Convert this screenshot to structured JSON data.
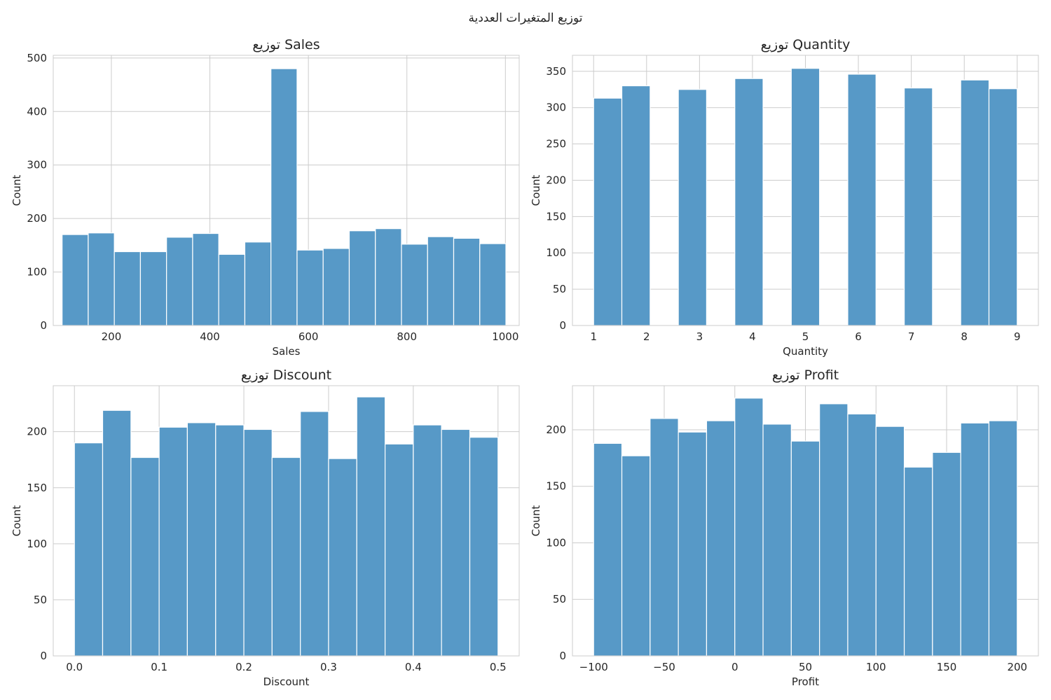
{
  "suptitle": "توزيع المتغيرات العددية",
  "colors": {
    "bar": "#5799c7",
    "grid": "#cccccc",
    "frame": "#cccccc",
    "text": "#262626"
  },
  "chart_data": [
    {
      "type": "bar",
      "title": "توزيع Sales",
      "xlabel": "Sales",
      "ylabel": "Count",
      "xlim": [
        82,
        1028
      ],
      "ylim": [
        0,
        505
      ],
      "xticks": [
        200,
        400,
        600,
        800,
        1000
      ],
      "yticks": [
        0,
        100,
        200,
        300,
        400,
        500
      ],
      "grid": true,
      "bins": [
        {
          "x0": 100,
          "x1": 153,
          "count": 170
        },
        {
          "x0": 153,
          "x1": 206,
          "count": 173
        },
        {
          "x0": 206,
          "x1": 259,
          "count": 138
        },
        {
          "x0": 259,
          "x1": 312,
          "count": 138
        },
        {
          "x0": 312,
          "x1": 365,
          "count": 165
        },
        {
          "x0": 365,
          "x1": 418,
          "count": 172
        },
        {
          "x0": 418,
          "x1": 471,
          "count": 133
        },
        {
          "x0": 471,
          "x1": 524,
          "count": 156
        },
        {
          "x0": 524,
          "x1": 577,
          "count": 480
        },
        {
          "x0": 577,
          "x1": 630,
          "count": 141
        },
        {
          "x0": 630,
          "x1": 683,
          "count": 144
        },
        {
          "x0": 683,
          "x1": 736,
          "count": 177
        },
        {
          "x0": 736,
          "x1": 789,
          "count": 181
        },
        {
          "x0": 789,
          "x1": 842,
          "count": 152
        },
        {
          "x0": 842,
          "x1": 895,
          "count": 166
        },
        {
          "x0": 895,
          "x1": 948,
          "count": 163
        },
        {
          "x0": 948,
          "x1": 1001,
          "count": 153
        }
      ]
    },
    {
      "type": "bar",
      "title": "توزيع Quantity",
      "xlabel": "Quantity",
      "ylabel": "Count",
      "xlim": [
        0.6,
        9.4
      ],
      "ylim": [
        0,
        372
      ],
      "xticks": [
        1,
        2,
        3,
        4,
        5,
        6,
        7,
        8,
        9
      ],
      "yticks": [
        0,
        50,
        100,
        150,
        200,
        250,
        300,
        350
      ],
      "grid": true,
      "bins": [
        {
          "x0": 1.0,
          "x1": 1.533,
          "count": 313
        },
        {
          "x0": 1.533,
          "x1": 2.067,
          "count": 330
        },
        {
          "x0": 2.6,
          "x1": 3.133,
          "count": 325
        },
        {
          "x0": 3.667,
          "x1": 4.2,
          "count": 340
        },
        {
          "x0": 4.733,
          "x1": 5.267,
          "count": 354
        },
        {
          "x0": 5.8,
          "x1": 6.333,
          "count": 346
        },
        {
          "x0": 6.867,
          "x1": 7.4,
          "count": 327
        },
        {
          "x0": 7.933,
          "x1": 8.467,
          "count": 338
        },
        {
          "x0": 8.467,
          "x1": 9.0,
          "count": 326
        }
      ]
    },
    {
      "type": "bar",
      "title": "توزيع Discount",
      "xlabel": "Discount",
      "ylabel": "Count",
      "xlim": [
        -0.025,
        0.525
      ],
      "ylim": [
        0,
        241
      ],
      "xticks": [
        0.0,
        0.1,
        0.2,
        0.3,
        0.4,
        0.5
      ],
      "xtick_labels": [
        "0.0",
        "0.1",
        "0.2",
        "0.3",
        "0.4",
        "0.5"
      ],
      "yticks": [
        0,
        50,
        100,
        150,
        200
      ],
      "grid": true,
      "bins": [
        {
          "x0": 0.0,
          "x1": 0.0333,
          "count": 190
        },
        {
          "x0": 0.0333,
          "x1": 0.0667,
          "count": 219
        },
        {
          "x0": 0.0667,
          "x1": 0.1,
          "count": 177
        },
        {
          "x0": 0.1,
          "x1": 0.1333,
          "count": 204
        },
        {
          "x0": 0.1333,
          "x1": 0.1667,
          "count": 208
        },
        {
          "x0": 0.1667,
          "x1": 0.2,
          "count": 206
        },
        {
          "x0": 0.2,
          "x1": 0.2333,
          "count": 202
        },
        {
          "x0": 0.2333,
          "x1": 0.2667,
          "count": 177
        },
        {
          "x0": 0.2667,
          "x1": 0.3,
          "count": 218
        },
        {
          "x0": 0.3,
          "x1": 0.3333,
          "count": 176
        },
        {
          "x0": 0.3333,
          "x1": 0.3667,
          "count": 231
        },
        {
          "x0": 0.3667,
          "x1": 0.4,
          "count": 189
        },
        {
          "x0": 0.4,
          "x1": 0.4333,
          "count": 206
        },
        {
          "x0": 0.4333,
          "x1": 0.4667,
          "count": 202
        },
        {
          "x0": 0.4667,
          "x1": 0.5,
          "count": 195
        }
      ]
    },
    {
      "type": "bar",
      "title": "توزيع Profit",
      "xlabel": "Profit",
      "ylabel": "Count",
      "xlim": [
        -115,
        215
      ],
      "ylim": [
        0,
        239
      ],
      "xticks": [
        -100,
        -50,
        0,
        50,
        100,
        150,
        200
      ],
      "xtick_labels": [
        "−100",
        "−50",
        "0",
        "50",
        "100",
        "150",
        "200"
      ],
      "yticks": [
        0,
        50,
        100,
        150,
        200
      ],
      "grid": true,
      "bins": [
        {
          "x0": -100,
          "x1": -80,
          "count": 188
        },
        {
          "x0": -80,
          "x1": -60,
          "count": 177
        },
        {
          "x0": -60,
          "x1": -40,
          "count": 210
        },
        {
          "x0": -40,
          "x1": -20,
          "count": 198
        },
        {
          "x0": -20,
          "x1": 0,
          "count": 208
        },
        {
          "x0": 0,
          "x1": 20,
          "count": 228
        },
        {
          "x0": 20,
          "x1": 40,
          "count": 205
        },
        {
          "x0": 40,
          "x1": 60,
          "count": 190
        },
        {
          "x0": 60,
          "x1": 80,
          "count": 223
        },
        {
          "x0": 80,
          "x1": 100,
          "count": 214
        },
        {
          "x0": 100,
          "x1": 120,
          "count": 203
        },
        {
          "x0": 120,
          "x1": 140,
          "count": 167
        },
        {
          "x0": 140,
          "x1": 160,
          "count": 180
        },
        {
          "x0": 160,
          "x1": 180,
          "count": 206
        },
        {
          "x0": 180,
          "x1": 200,
          "count": 208
        }
      ]
    }
  ]
}
